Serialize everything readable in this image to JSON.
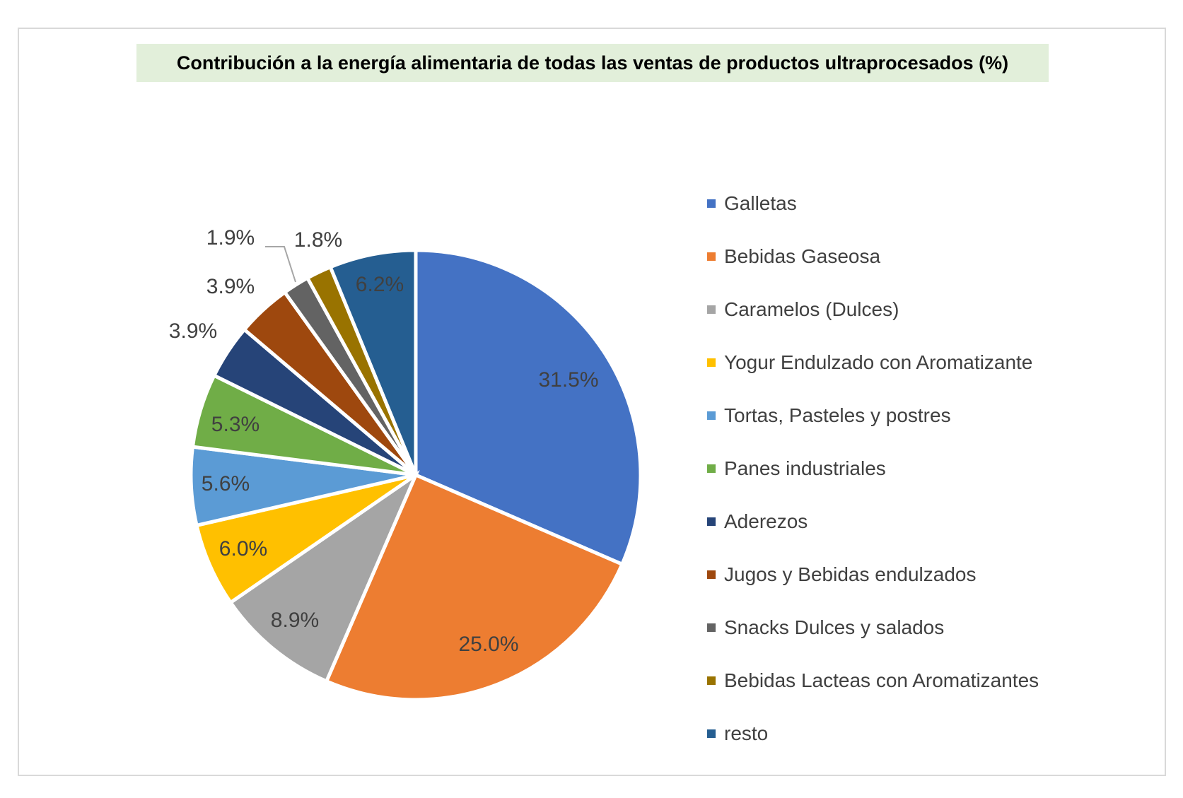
{
  "chart_data": {
    "type": "pie",
    "title": "Contribución a la energía alimentaria de todas las ventas de productos ultraprocesados (%)",
    "categories": [
      "Galletas",
      "Bebidas Gaseosa",
      "Caramelos (Dulces)",
      "Yogur Endulzado con Aromatizante",
      "Tortas, Pasteles y postres",
      "Panes industriales",
      "Aderezos",
      "Jugos y Bebidas endulzados",
      "Snacks Dulces y salados",
      "Bebidas Lacteas con Aromatizantes",
      "resto"
    ],
    "values": [
      31.5,
      25.0,
      8.9,
      6.0,
      5.6,
      5.3,
      3.9,
      3.9,
      1.9,
      1.8,
      6.2
    ],
    "data_labels": [
      "31.5%",
      "25.0%",
      "8.9%",
      "6.0%",
      "5.6%",
      "5.3%",
      "3.9%",
      "3.9%",
      "1.9%",
      "1.8%",
      "6.2%"
    ],
    "colors": [
      "#4472C4",
      "#ED7D31",
      "#A5A5A5",
      "#FFC000",
      "#5B9BD5",
      "#70AD47",
      "#264478",
      "#9E480E",
      "#636363",
      "#997300",
      "#255E91"
    ],
    "legend_position": "right",
    "start_angle": "top, clockwise"
  }
}
